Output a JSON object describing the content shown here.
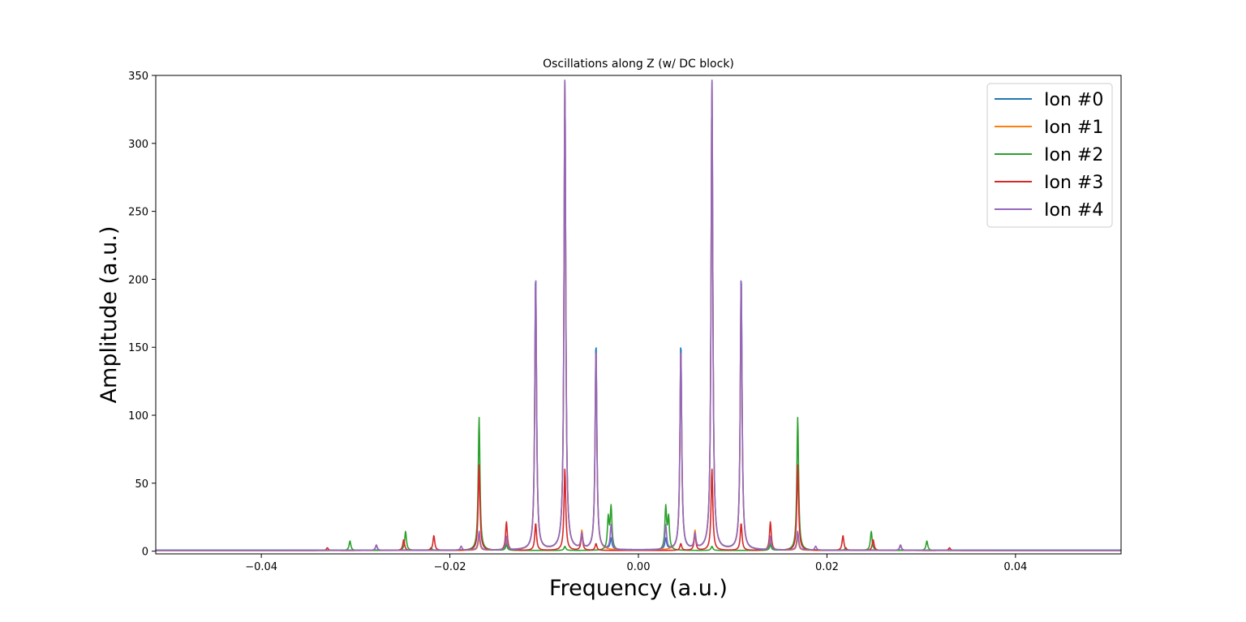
{
  "chart_data": {
    "type": "line",
    "title": "Oscillations along Z (w/ DC block)",
    "xlabel": "Frequency (a.u.)",
    "ylabel": "Amplitude (a.u.)",
    "xlim": [
      -0.0512,
      0.0512
    ],
    "ylim": [
      -2,
      350
    ],
    "xticks": [
      -0.04,
      -0.02,
      0.0,
      0.02,
      0.04
    ],
    "xtick_labels": [
      "−0.04",
      "−0.02",
      "0.00",
      "0.02",
      "0.04"
    ],
    "yticks": [
      0,
      50,
      100,
      150,
      200,
      250,
      300,
      350
    ],
    "ytick_labels": [
      "0",
      "50",
      "100",
      "150",
      "200",
      "250",
      "300",
      "350"
    ],
    "grid": false,
    "legend_position": "top-right",
    "series": [
      {
        "name": "Ion #0",
        "color": "#1f77b4",
        "baseline": 0.8,
        "peaks": [
          [
            -0.0078,
            347
          ],
          [
            0.0078,
            347
          ],
          [
            -0.0045,
            153
          ],
          [
            0.0045,
            153
          ],
          [
            -0.0109,
            204
          ],
          [
            0.0109,
            204
          ],
          [
            -0.0169,
            12
          ],
          [
            0.0169,
            12
          ],
          [
            -0.014,
            5
          ],
          [
            0.014,
            5
          ],
          [
            -0.0029,
            8
          ],
          [
            0.0029,
            8
          ],
          [
            -0.006,
            10
          ],
          [
            0.006,
            10
          ]
        ]
      },
      {
        "name": "Ion #1",
        "color": "#ff7f0e",
        "baseline": 0.5,
        "peaks": [
          [
            -0.0078,
            345
          ],
          [
            0.0078,
            345
          ],
          [
            -0.0045,
            149
          ],
          [
            0.0045,
            149
          ],
          [
            -0.0109,
            200
          ],
          [
            0.0109,
            200
          ],
          [
            -0.006,
            13
          ],
          [
            0.006,
            13
          ],
          [
            -0.0169,
            10
          ],
          [
            0.0169,
            10
          ],
          [
            -0.014,
            8
          ],
          [
            0.014,
            8
          ]
        ]
      },
      {
        "name": "Ion #2",
        "color": "#2ca02c",
        "baseline": 0.5,
        "peaks": [
          [
            -0.0169,
            98
          ],
          [
            0.0169,
            98
          ],
          [
            -0.0032,
            23
          ],
          [
            0.0032,
            23
          ],
          [
            -0.0029,
            31
          ],
          [
            0.0029,
            31
          ],
          [
            -0.0247,
            14
          ],
          [
            0.0247,
            14
          ],
          [
            -0.0306,
            7
          ],
          [
            0.0306,
            7
          ],
          [
            -0.0078,
            3
          ],
          [
            0.0078,
            3
          ],
          [
            -0.014,
            4
          ],
          [
            0.014,
            4
          ],
          [
            -0.022,
            2
          ],
          [
            0.022,
            2
          ]
        ]
      },
      {
        "name": "Ion #3",
        "color": "#d62728",
        "baseline": 0.5,
        "peaks": [
          [
            -0.0169,
            63
          ],
          [
            0.0169,
            63
          ],
          [
            -0.014,
            21
          ],
          [
            0.014,
            21
          ],
          [
            -0.0217,
            11
          ],
          [
            0.0217,
            11
          ],
          [
            -0.0249,
            8
          ],
          [
            0.0249,
            8
          ],
          [
            -0.0078,
            60
          ],
          [
            0.0078,
            60
          ],
          [
            -0.0109,
            20
          ],
          [
            0.0109,
            20
          ],
          [
            -0.006,
            12
          ],
          [
            0.006,
            12
          ],
          [
            -0.033,
            2
          ],
          [
            0.033,
            2
          ],
          [
            -0.0045,
            5
          ],
          [
            0.0045,
            5
          ],
          [
            -0.0278,
            4
          ],
          [
            0.0278,
            4
          ]
        ]
      },
      {
        "name": "Ion #4",
        "color": "#9467bd",
        "baseline": 0.6,
        "peaks": [
          [
            -0.0078,
            347
          ],
          [
            0.0078,
            347
          ],
          [
            -0.0109,
            204
          ],
          [
            0.0109,
            204
          ],
          [
            -0.0045,
            149
          ],
          [
            0.0045,
            149
          ],
          [
            -0.014,
            10
          ],
          [
            0.014,
            10
          ],
          [
            -0.0169,
            14
          ],
          [
            0.0169,
            14
          ],
          [
            -0.006,
            11
          ],
          [
            0.006,
            11
          ],
          [
            -0.0029,
            18
          ],
          [
            0.0029,
            18
          ],
          [
            -0.0278,
            4
          ],
          [
            0.0278,
            4
          ],
          [
            -0.0188,
            3
          ],
          [
            0.0188,
            3
          ]
        ]
      }
    ]
  }
}
